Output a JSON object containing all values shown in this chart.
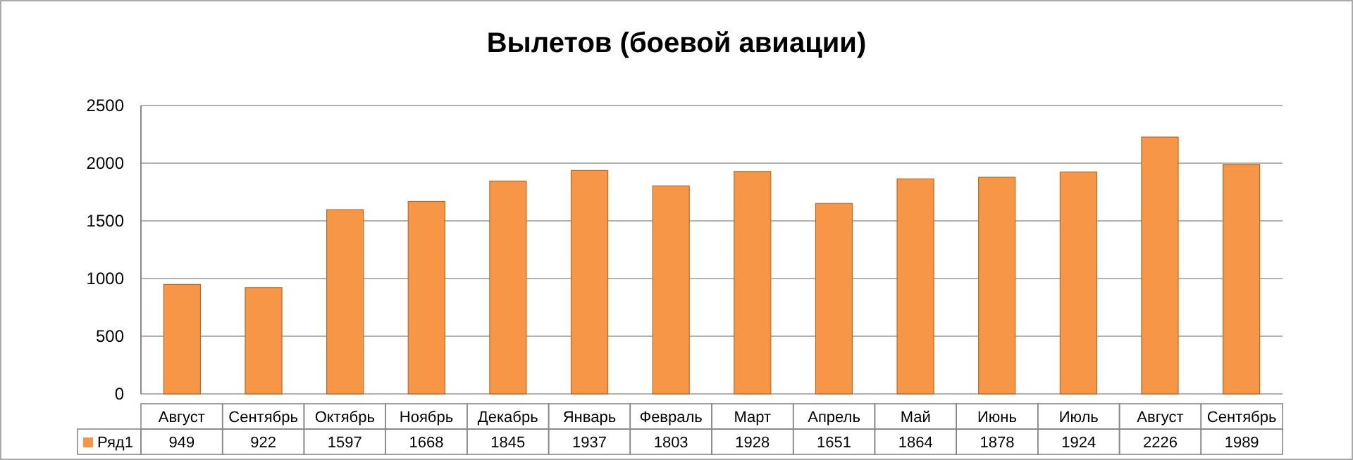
{
  "chart_data": {
    "type": "bar",
    "title": "Вылетов (боевой авиации)",
    "categories": [
      "Август",
      "Сентябрь",
      "Октябрь",
      "Ноябрь",
      "Декабрь",
      "Январь",
      "Февраль",
      "Март",
      "Апрель",
      "Май",
      "Июнь",
      "Июль",
      "Август",
      "Сентябрь"
    ],
    "series": [
      {
        "name": "Ряд1",
        "color": "#f79646",
        "values": [
          949,
          922,
          1597,
          1668,
          1845,
          1937,
          1803,
          1928,
          1651,
          1864,
          1878,
          1924,
          2226,
          1989
        ]
      }
    ],
    "ylim": [
      0,
      2500
    ],
    "yticks": [
      0,
      500,
      1000,
      1500,
      2000,
      2500
    ],
    "grid": "y",
    "legend": "bottom",
    "data_labels": true
  }
}
